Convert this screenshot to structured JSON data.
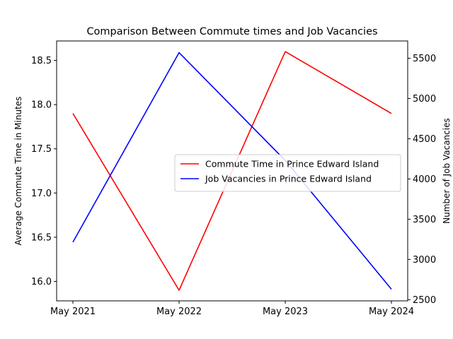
{
  "chart_data": {
    "type": "line",
    "title": "Comparison Between Commute times and Job Vacancies",
    "categories": [
      "May 2021",
      "May 2022",
      "May 2023",
      "May 2024"
    ],
    "y_left": {
      "label": "Average Commute Time in Minutes",
      "range": [
        15.78,
        18.72
      ],
      "ticks": [
        16.0,
        16.5,
        17.0,
        17.5,
        18.0,
        18.5
      ],
      "tick_labels": [
        "16.0",
        "16.5",
        "17.0",
        "17.5",
        "18.0",
        "18.5"
      ]
    },
    "y_right": {
      "label": "Number of Job Vacancies",
      "range": [
        2485,
        5715
      ],
      "ticks": [
        2500,
        3000,
        3500,
        4000,
        4500,
        5000,
        5500
      ],
      "tick_labels": [
        "2500",
        "3000",
        "3500",
        "4000",
        "4500",
        "5000",
        "5500"
      ]
    },
    "series": [
      {
        "name": "Commute Time in Prince Edward Island",
        "axis": "left",
        "color": "#ff0000",
        "values": [
          17.9,
          15.9,
          18.6,
          17.9
        ]
      },
      {
        "name": "Job Vacancies in Prince Edward Island",
        "axis": "right",
        "color": "#0000ff",
        "values": [
          3215,
          5570,
          4230,
          2630
        ]
      }
    ],
    "legend_position": "center-right",
    "grid": false
  }
}
